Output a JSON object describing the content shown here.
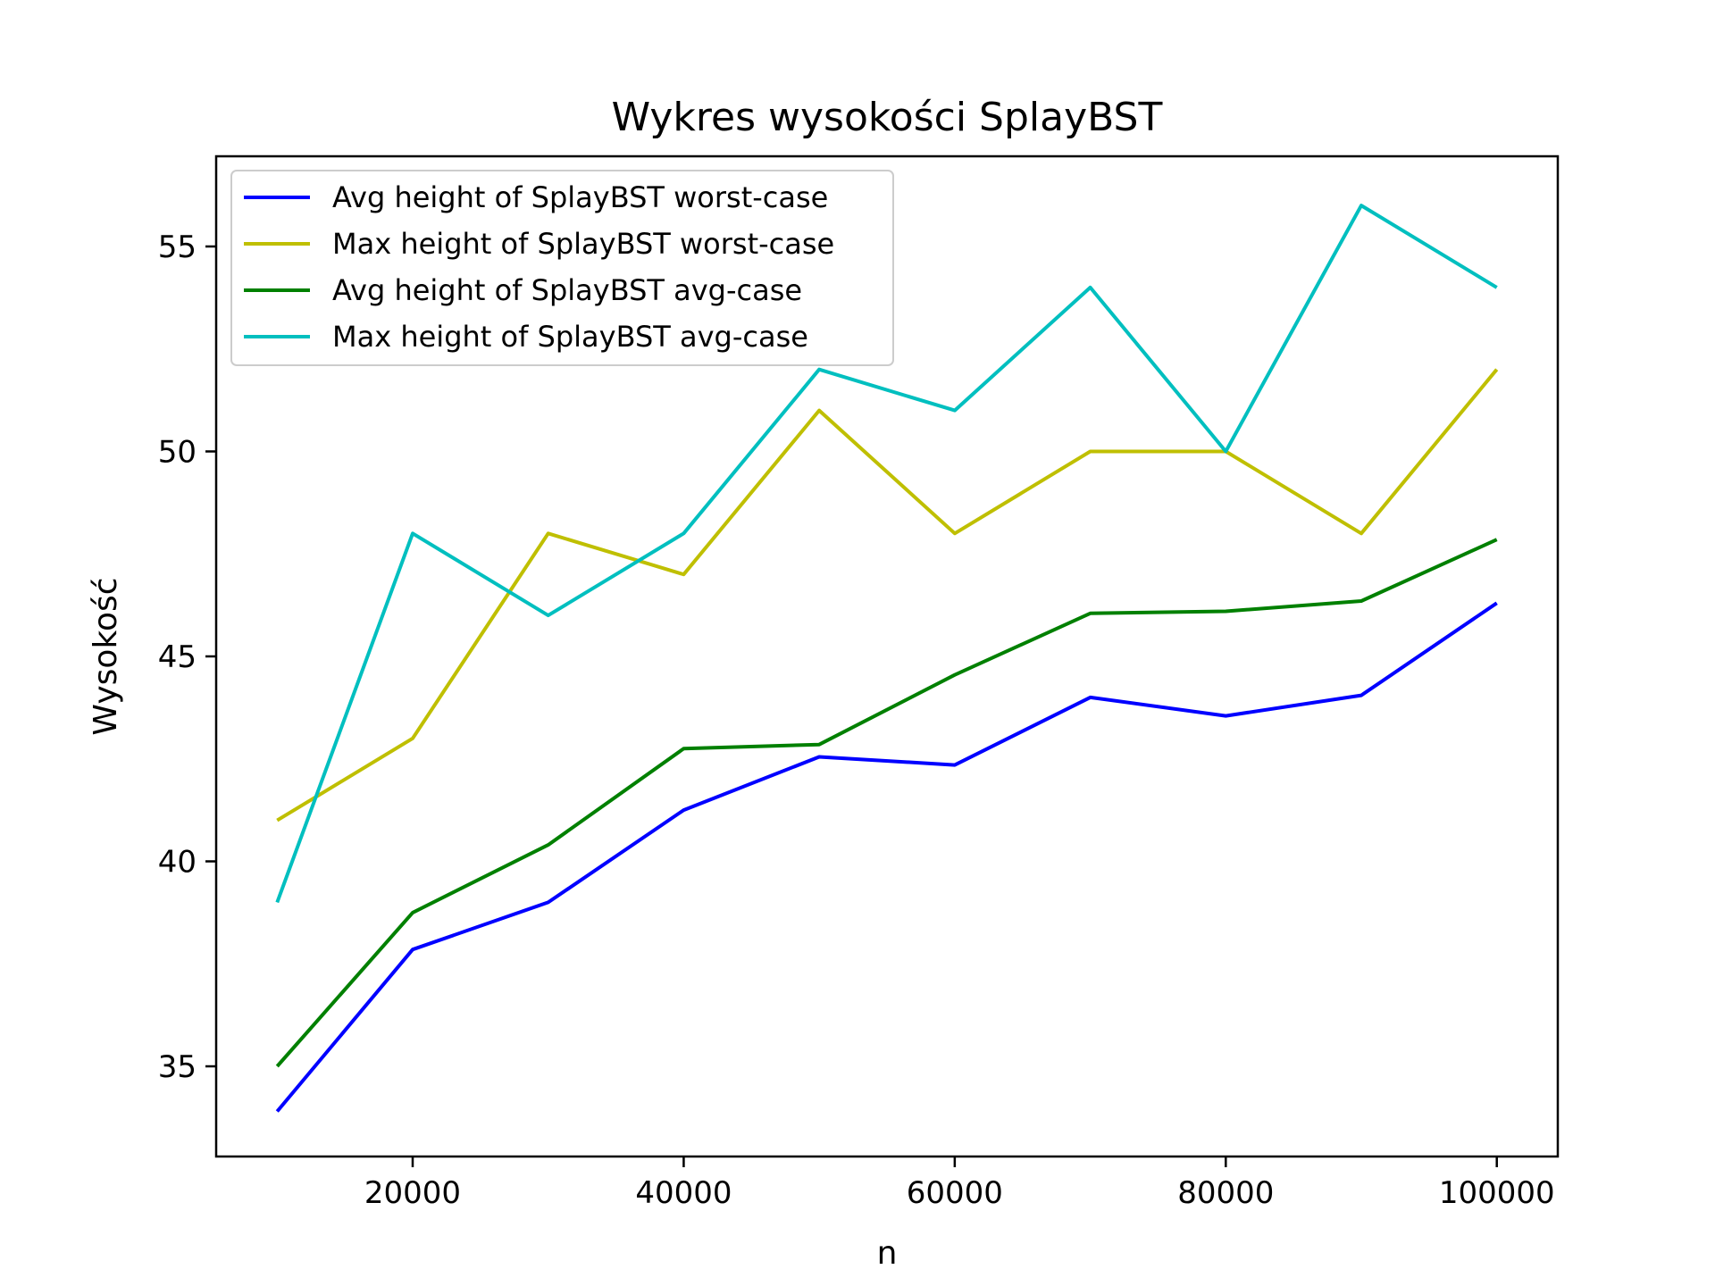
{
  "chart_data": {
    "type": "line",
    "title": "Wykres wysokości SplayBST",
    "xlabel": "n",
    "ylabel": "Wysokość",
    "x": [
      10000,
      20000,
      30000,
      40000,
      50000,
      60000,
      70000,
      80000,
      90000,
      100000
    ],
    "xlim": [
      5500,
      104500
    ],
    "ylim": [
      32.8,
      57.2
    ],
    "xticks": [
      20000,
      40000,
      60000,
      80000,
      100000
    ],
    "yticks": [
      35,
      40,
      45,
      50,
      55
    ],
    "grid": false,
    "legend_position": "top-left",
    "series": [
      {
        "name": "Avg height of SplayBST worst-case",
        "color": "#0000ff",
        "values": [
          33.9,
          37.85,
          39.0,
          41.25,
          42.55,
          42.35,
          44.0,
          43.55,
          44.05,
          46.3
        ]
      },
      {
        "name": "Max height of SplayBST worst-case",
        "color": "#bfbf00",
        "values": [
          41,
          43,
          48,
          47,
          51,
          48,
          50,
          50,
          48,
          52
        ]
      },
      {
        "name": "Avg height of SplayBST avg-case",
        "color": "#008000",
        "values": [
          35.0,
          38.75,
          40.4,
          42.75,
          42.85,
          44.55,
          46.05,
          46.1,
          46.35,
          47.85
        ]
      },
      {
        "name": "Max height of SplayBST avg-case",
        "color": "#00bfbf",
        "values": [
          39,
          48,
          46,
          48,
          52,
          51,
          54,
          50,
          56,
          54
        ]
      }
    ]
  }
}
